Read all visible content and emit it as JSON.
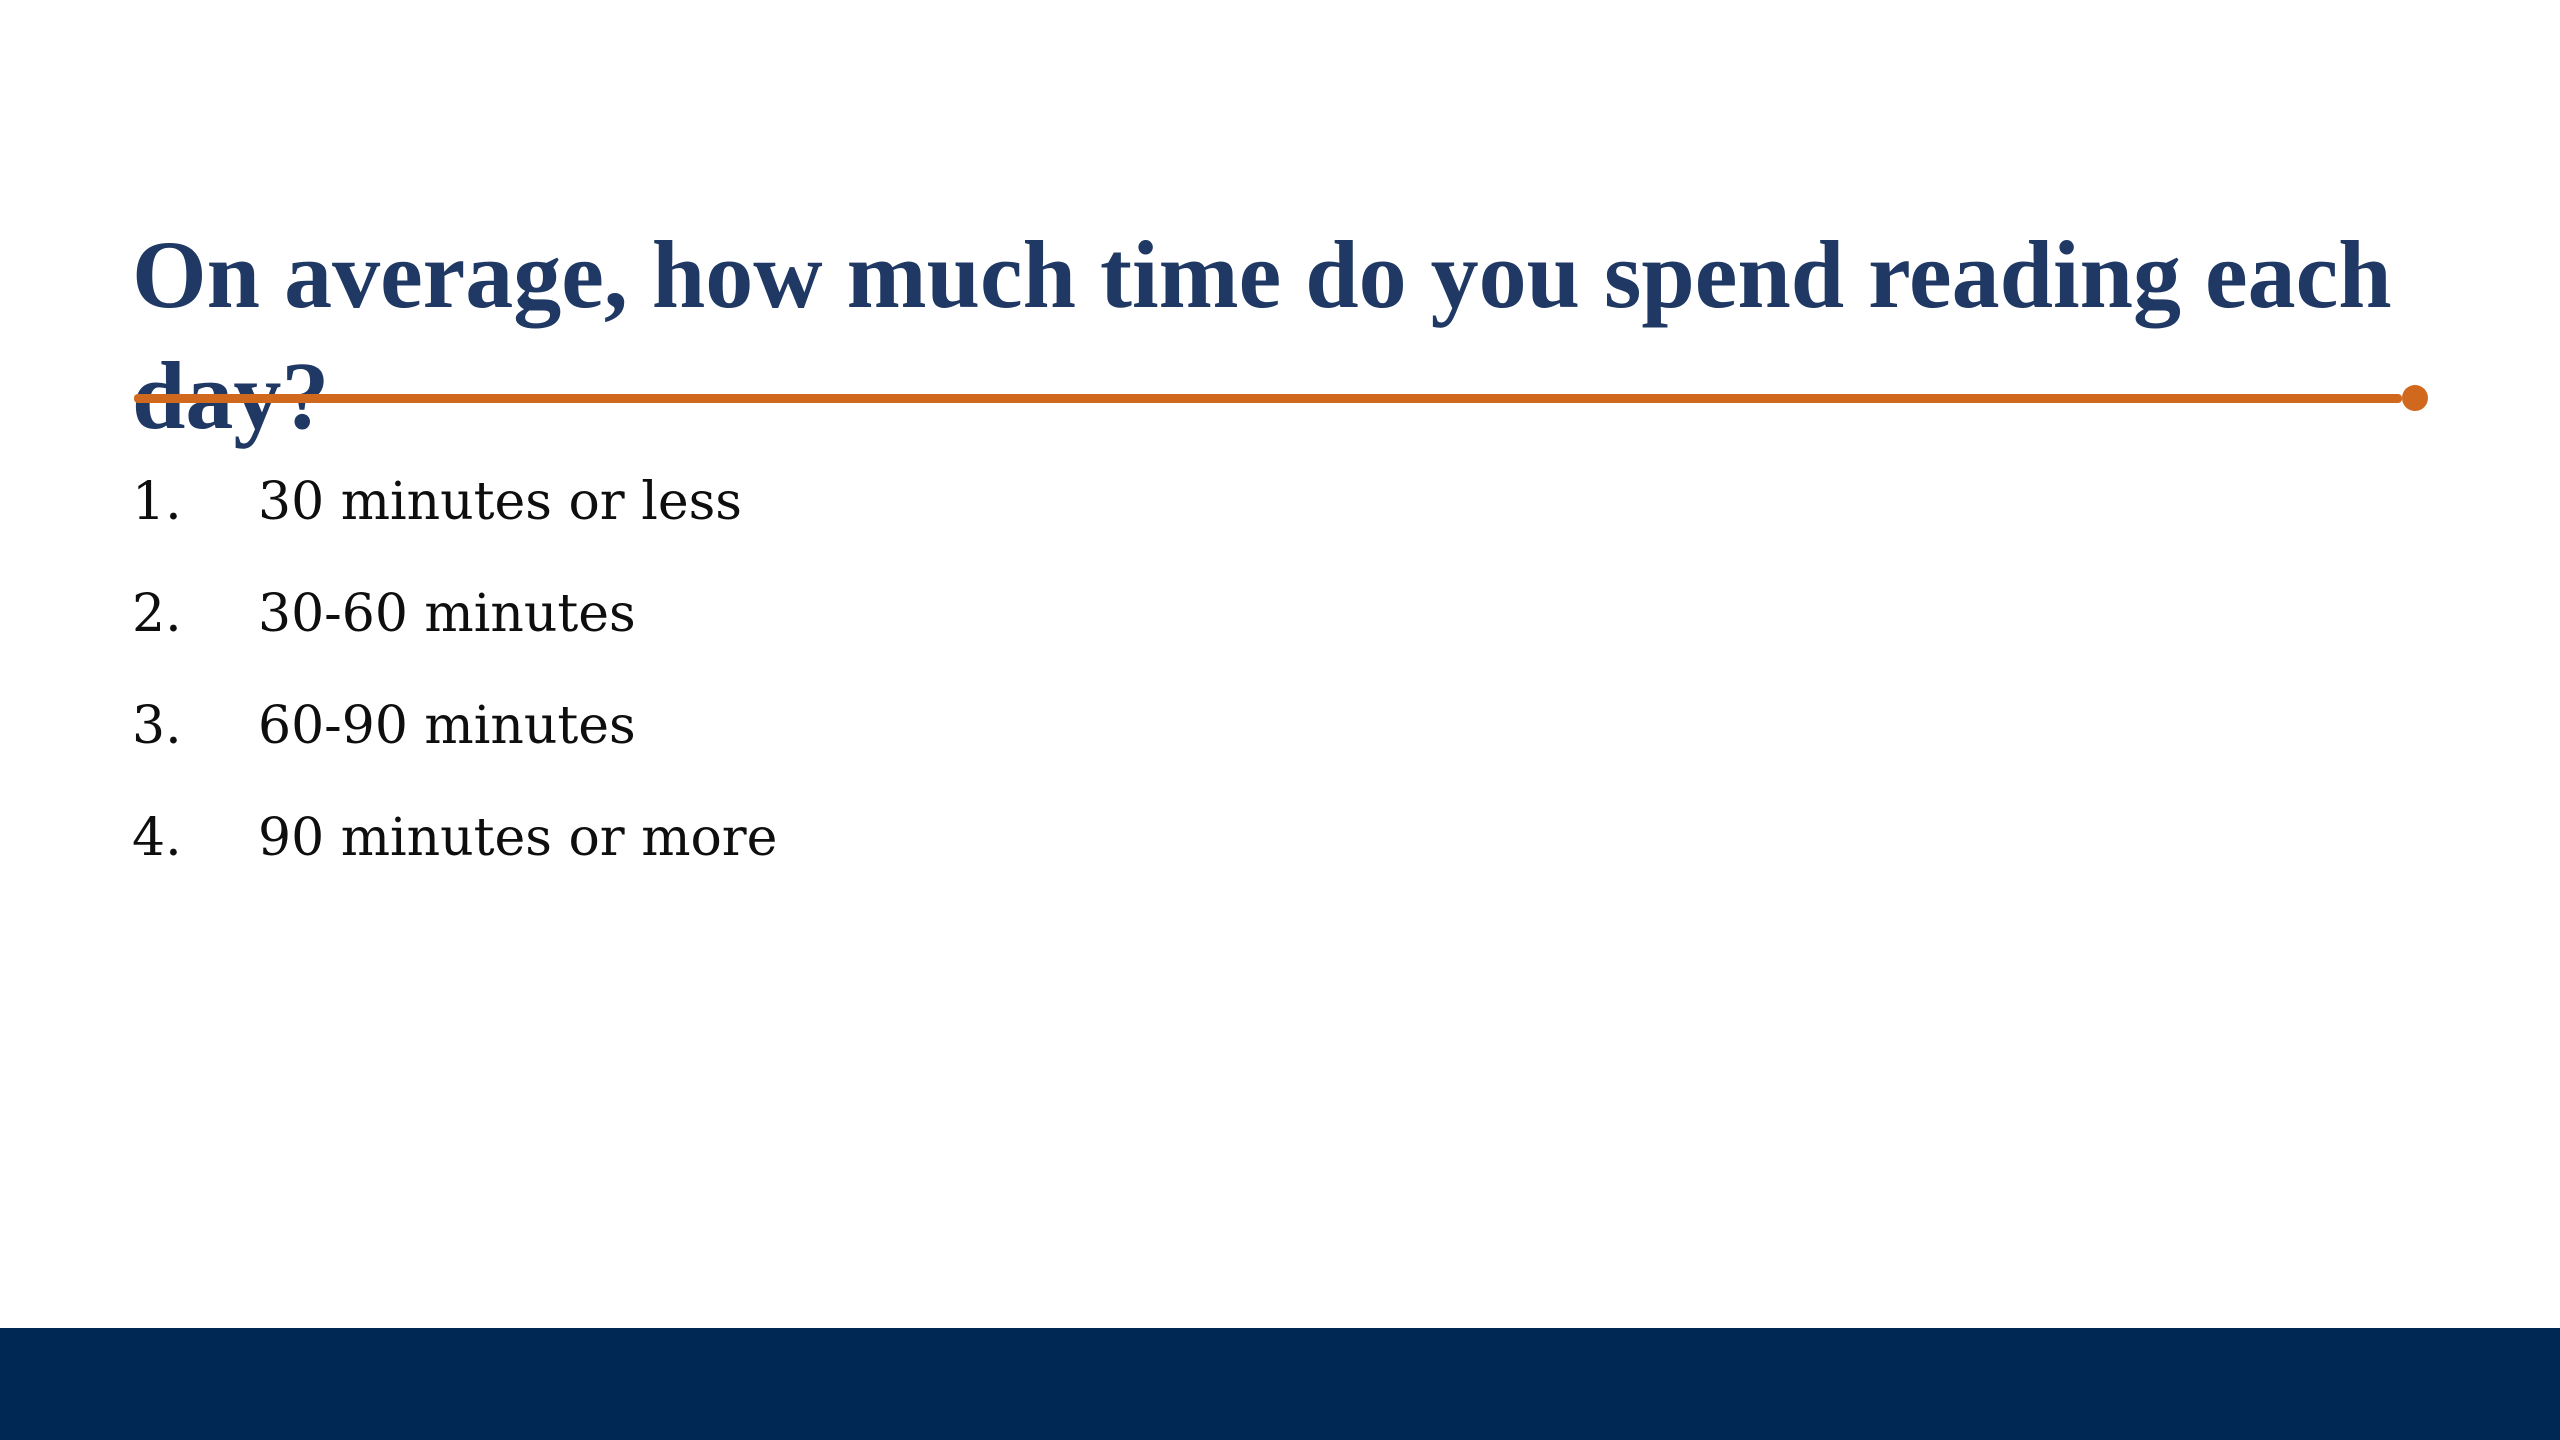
{
  "slide": {
    "title": "On average, how much time do you spend reading each day?",
    "options": [
      {
        "number": "1.",
        "label": "30 minutes or less"
      },
      {
        "number": "2.",
        "label": "30-60 minutes"
      },
      {
        "number": "3.",
        "label": "60-90 minutes"
      },
      {
        "number": "4.",
        "label": "90 minutes or more"
      }
    ],
    "colors": {
      "title_text": "#1F3864",
      "accent_orange": "#D0691E",
      "footer_bar": "#002855",
      "body_text": "#0E0E0E",
      "background": "#FFFFFF"
    }
  }
}
